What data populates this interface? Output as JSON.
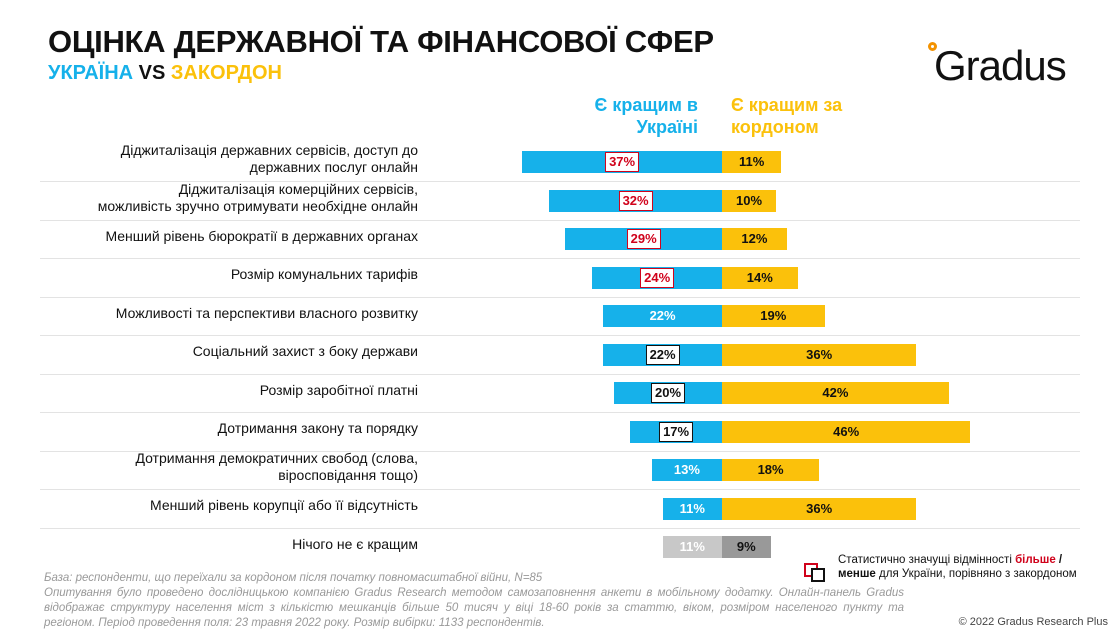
{
  "header": {
    "title": "ОЦІНКА ДЕРЖАВНОЇ ТА ФІНАНСОВОЇ СФЕР",
    "subtitle_a": "УКРАЇНА",
    "subtitle_vs": " VS ",
    "subtitle_b": "ЗАКОРДОН",
    "logo": "Gradus"
  },
  "chart_data": {
    "type": "bar",
    "orientation": "horizontal-diverging",
    "series": [
      {
        "name": "Є кращим в Україні",
        "color": "#16b1ea"
      },
      {
        "name": "Є кращим за кордоном",
        "color": "#fbc10b"
      }
    ],
    "categories": [
      "Діджиталізація державних сервісів, доступ до державних послуг онлайн",
      "Діджиталізація комерційних сервісів, можливість зручно отримувати необхідне онлайн",
      "Менший рівень бюрократії в державних органах",
      "Розмір комунальних тарифів",
      "Можливості та перспективи власного розвитку",
      "Соціальний захист з боку держави",
      "Розмір заробітної платні",
      "Дотримання закону та порядку",
      "Дотримання демократичних свобод (слова, віросповідання тощо)",
      "Менший рівень корупції або її відсутність",
      "Нічого не є кращим"
    ],
    "label_lines": [
      [
        "Діджиталізація державних сервісів, доступ до",
        "державних послуг онлайн"
      ],
      [
        "Діджиталізація комерційних сервісів,",
        "можливість зручно отримувати необхідне онлайн"
      ],
      [
        "Менший рівень бюрократії в державних органах"
      ],
      [
        "Розмір комунальних тарифів"
      ],
      [
        "Можливості та перспективи власного розвитку"
      ],
      [
        "Соціальний захист з боку держави"
      ],
      [
        "Розмір заробітної платні"
      ],
      [
        "Дотримання закону та порядку"
      ],
      [
        "Дотримання демократичних свобод (слова,",
        "віросповідання тощо)"
      ],
      [
        "Менший рівень корупції або її відсутність"
      ],
      [
        "Нічого не є кращим"
      ]
    ],
    "ukraine": [
      37,
      32,
      29,
      24,
      22,
      22,
      20,
      17,
      13,
      11,
      11
    ],
    "abroad": [
      11,
      10,
      12,
      14,
      19,
      36,
      42,
      46,
      18,
      36,
      9
    ],
    "significance": [
      "more",
      "more",
      "more",
      "more",
      "none",
      "less",
      "less",
      "less",
      "none",
      "none",
      "none"
    ],
    "highlight_colors": {
      "more": "#d0021b",
      "less": "#111111"
    },
    "neutral_row_colors": {
      "ukraine": "#c8c8c8",
      "abroad": "#999999"
    },
    "unit": "%"
  },
  "legend": {
    "text_1": "Статистично значущі відмінності ",
    "more": "більше",
    "slash": " /",
    "less": "менше",
    "text_2": " для України, порівняно з закордоном"
  },
  "footnote": {
    "base": "База: респонденти, що переїхали за кордоном після початку повномасштабної війни, N=85",
    "method": "Опитування було проведено дослідницькою компанією Gradus Research методом самозаповнення анкети в мобільному додатку. Онлайн-панель Gradus відображає структуру населення міст з кількістю мешканців більше 50 тисяч у віці 18-60 років за статтю, віком, розміром населеного пункту та регіоном. Період проведення поля: 23 травня 2022 року. Розмір вибірки: 1133 респондентів."
  },
  "copyright": "© 2022 Gradus Research Plus"
}
